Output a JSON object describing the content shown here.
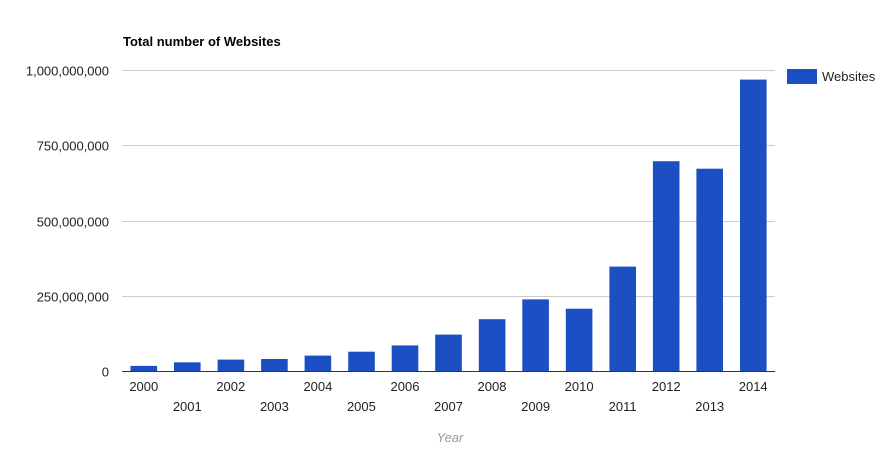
{
  "chart_data": {
    "type": "bar",
    "title": "Total number of Websites",
    "xlabel": "Year",
    "ylabel": "",
    "categories": [
      "2000",
      "2001",
      "2002",
      "2003",
      "2004",
      "2005",
      "2006",
      "2007",
      "2008",
      "2009",
      "2010",
      "2011",
      "2012",
      "2013",
      "2014"
    ],
    "series": [
      {
        "name": "Websites",
        "color": "#1c4fc4",
        "values": [
          17000000,
          29000000,
          38000000,
          40000000,
          51000000,
          64000000,
          85000000,
          121000000,
          172000000,
          238000000,
          207000000,
          347000000,
          697000000,
          672000000,
          968000000
        ]
      }
    ],
    "ylim": [
      0,
      1000000000
    ],
    "yticks": [
      0,
      250000000,
      500000000,
      750000000,
      1000000000
    ],
    "ytick_labels": [
      "0",
      "250,000,000",
      "500,000,000",
      "750,000,000",
      "1,000,000,000"
    ],
    "grid": true,
    "legend_position": "right",
    "gridline_color": "#cccccc"
  }
}
